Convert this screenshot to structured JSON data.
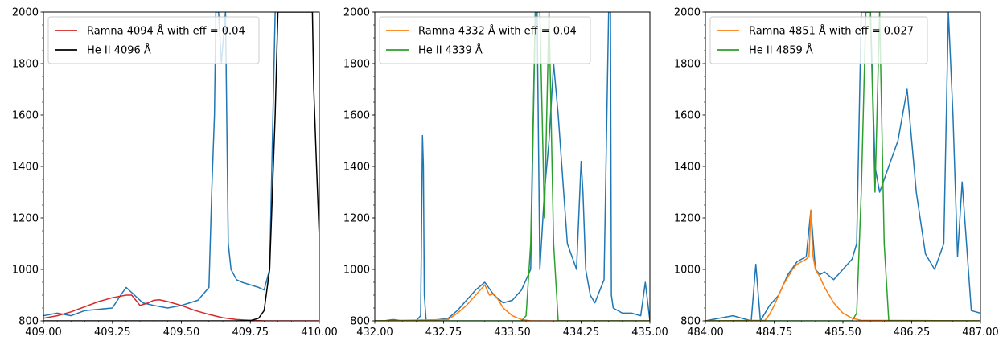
{
  "chart_data": [
    {
      "type": "line",
      "xlim": [
        409.0,
        410.0
      ],
      "ylim": [
        800,
        2000
      ],
      "xticks": [
        "409.00",
        "409.25",
        "409.50",
        "409.75",
        "410.00"
      ],
      "yticks": [
        "800",
        "1000",
        "1200",
        "1400",
        "1600",
        "1800",
        "2000"
      ],
      "legend_position": "top-left",
      "series": [
        {
          "name": "",
          "color": "#1f77b4",
          "kind": "spectrum",
          "x": [
            409.0,
            409.05,
            409.1,
            409.15,
            409.2,
            409.25,
            409.28,
            409.3,
            409.33,
            409.36,
            409.4,
            409.45,
            409.5,
            409.53,
            409.56,
            409.6,
            409.61,
            409.62,
            409.625,
            409.635,
            409.645,
            409.66,
            409.67,
            409.68,
            409.7,
            409.72,
            409.75,
            409.78,
            409.8,
            409.82,
            409.84
          ],
          "y": [
            820,
            830,
            820,
            840,
            845,
            850,
            900,
            930,
            900,
            870,
            860,
            850,
            860,
            870,
            880,
            930,
            1300,
            1600,
            2000,
            2000,
            1800,
            2000,
            1100,
            1000,
            960,
            950,
            940,
            930,
            920,
            1000,
            2000
          ]
        },
        {
          "name": "Ramna 4094 Å with eff = 0.04",
          "color": "#d62728",
          "x": [
            409.0,
            409.05,
            409.1,
            409.15,
            409.2,
            409.25,
            409.3,
            409.32,
            409.35,
            409.38,
            409.4,
            409.42,
            409.45,
            409.5,
            409.55,
            409.6,
            409.65,
            409.7,
            409.75,
            409.8,
            410.0
          ],
          "y": [
            810,
            820,
            835,
            855,
            875,
            890,
            900,
            900,
            860,
            870,
            880,
            882,
            875,
            860,
            840,
            825,
            812,
            805,
            802,
            800,
            800
          ]
        },
        {
          "name": "He II 4096 Å",
          "color": "#000000",
          "x": [
            409.0,
            409.7,
            409.75,
            409.78,
            409.8,
            409.82,
            409.84,
            409.85,
            409.975,
            409.98,
            409.99,
            410.0
          ],
          "y": [
            800,
            800,
            801,
            810,
            840,
            1000,
            1600,
            2000,
            2000,
            1700,
            1400,
            1120
          ]
        }
      ]
    },
    {
      "type": "line",
      "xlim": [
        432.0,
        435.0
      ],
      "ylim": [
        800,
        2000
      ],
      "xticks": [
        "432.00",
        "432.75",
        "433.50",
        "434.25",
        "435.00"
      ],
      "yticks": [
        "800",
        "1000",
        "1200",
        "1400",
        "1600",
        "1800",
        "2000"
      ],
      "legend_position": "top-left",
      "series": [
        {
          "name": "",
          "color": "#1f77b4",
          "kind": "spectrum",
          "x": [
            432.0,
            432.1,
            432.2,
            432.3,
            432.45,
            432.5,
            432.52,
            432.53,
            432.54,
            432.56,
            432.6,
            432.8,
            432.9,
            433.0,
            433.1,
            433.2,
            433.3,
            433.4,
            433.5,
            433.6,
            433.7,
            433.75,
            433.77,
            433.8,
            433.85,
            433.9,
            433.95,
            434.0,
            434.1,
            434.2,
            434.25,
            434.27,
            434.3,
            434.35,
            434.4,
            434.5,
            434.55,
            434.57,
            434.58,
            434.6,
            434.7,
            434.8,
            434.9,
            434.95,
            435.0
          ],
          "y": [
            800,
            800,
            805,
            800,
            800,
            820,
            1520,
            1400,
            900,
            800,
            800,
            810,
            840,
            880,
            920,
            950,
            900,
            870,
            880,
            920,
            1000,
            2000,
            2000,
            1000,
            1300,
            1500,
            1800,
            1600,
            1100,
            1000,
            1420,
            1300,
            1000,
            900,
            870,
            960,
            2000,
            2000,
            900,
            850,
            830,
            830,
            820,
            950,
            800
          ]
        },
        {
          "name": "Ramna 4332 Å with eff = 0.04",
          "color": "#ff7f0e",
          "x": [
            432.0,
            432.8,
            432.9,
            433.0,
            433.1,
            433.2,
            433.25,
            433.3,
            433.35,
            433.4,
            433.5,
            433.6,
            433.7,
            435.0
          ],
          "y": [
            800,
            805,
            830,
            860,
            900,
            940,
            900,
            905,
            880,
            850,
            820,
            805,
            800,
            800
          ]
        },
        {
          "name": "He II 4339 Å",
          "color": "#2ca02c",
          "x": [
            432.0,
            433.6,
            433.65,
            433.7,
            433.75,
            433.8,
            433.85,
            433.9,
            433.95,
            434.0,
            435.0
          ],
          "y": [
            800,
            800,
            820,
            1100,
            2000,
            2000,
            1200,
            2000,
            1100,
            800,
            800
          ]
        }
      ]
    },
    {
      "type": "line",
      "xlim": [
        484.0,
        487.0
      ],
      "ylim": [
        800,
        2000
      ],
      "xticks": [
        "484.00",
        "484.75",
        "485.50",
        "486.25",
        "487.00"
      ],
      "yticks": [
        "800",
        "1000",
        "1200",
        "1400",
        "1600",
        "1800",
        "2000"
      ],
      "legend_position": "top-left",
      "series": [
        {
          "name": "",
          "color": "#1f77b4",
          "kind": "spectrum",
          "x": [
            484.0,
            484.3,
            484.5,
            484.55,
            484.6,
            484.7,
            484.8,
            484.9,
            485.0,
            485.1,
            485.15,
            485.2,
            485.25,
            485.3,
            485.4,
            485.5,
            485.6,
            485.65,
            485.7,
            485.75,
            485.8,
            485.85,
            485.9,
            486.0,
            486.1,
            486.2,
            486.3,
            486.4,
            486.5,
            486.6,
            486.65,
            486.7,
            486.75,
            486.8,
            486.9,
            487.0
          ],
          "y": [
            800,
            820,
            800,
            1020,
            800,
            860,
            900,
            980,
            1030,
            1050,
            1230,
            1000,
            980,
            990,
            960,
            1000,
            1040,
            1100,
            2000,
            2000,
            2000,
            1400,
            1300,
            1400,
            1500,
            1700,
            1300,
            1060,
            1000,
            1100,
            2000,
            1600,
            1050,
            1340,
            840,
            830
          ]
        },
        {
          "name": "Ramna 4851 Å with eff = 0.027",
          "color": "#ff7f0e",
          "x": [
            484.0,
            484.65,
            484.7,
            484.75,
            484.8,
            484.85,
            484.9,
            484.95,
            485.0,
            485.05,
            485.1,
            485.13,
            485.15,
            485.17,
            485.2,
            485.25,
            485.3,
            485.35,
            485.4,
            485.45,
            485.5,
            485.6,
            485.7,
            487.0
          ],
          "y": [
            800,
            802,
            825,
            860,
            900,
            940,
            970,
            1000,
            1020,
            1030,
            1040,
            1050,
            1230,
            1060,
            1000,
            970,
            930,
            900,
            870,
            850,
            830,
            810,
            802,
            800
          ]
        },
        {
          "name": "He II 4859 Å",
          "color": "#2ca02c",
          "x": [
            484.0,
            485.6,
            485.65,
            485.7,
            485.75,
            485.8,
            485.85,
            485.9,
            485.95,
            486.0,
            487.0
          ],
          "y": [
            800,
            800,
            830,
            1300,
            2000,
            2000,
            1300,
            2000,
            1100,
            800,
            800
          ]
        }
      ]
    }
  ]
}
